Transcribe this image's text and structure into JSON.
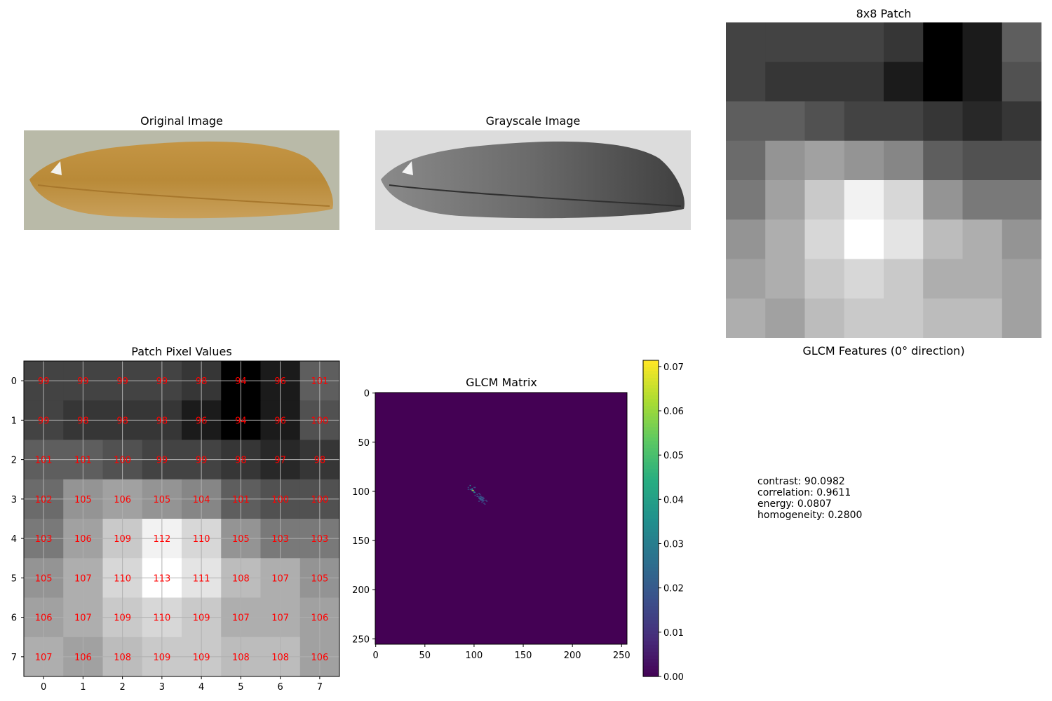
{
  "panels": {
    "original_title": "Original Image",
    "grayscale_title": "Grayscale Image",
    "patch_title": "8x8 Patch",
    "values_title": "Patch Pixel Values",
    "glcm_title": "GLCM Matrix",
    "features_title": "GLCM Features (0° direction)"
  },
  "features": [
    "contrast: 90.0982",
    "correlation: 0.9611",
    "energy: 0.0807",
    "homogeneity: 0.2800"
  ],
  "colors": {
    "grain": "#b88a3a",
    "background": "#b7b8a6",
    "value_text": "#ff0000"
  },
  "chart_data": [
    {
      "type": "heatmap",
      "title": "8x8 Patch",
      "colormap": "gray",
      "values": [
        [
          99,
          99,
          99,
          99,
          98,
          94,
          96,
          101
        ],
        [
          99,
          98,
          98,
          98,
          96,
          94,
          96,
          100
        ],
        [
          101,
          101,
          100,
          99,
          99,
          98,
          97,
          98
        ],
        [
          102,
          105,
          106,
          105,
          104,
          101,
          100,
          100
        ],
        [
          103,
          106,
          109,
          112,
          110,
          105,
          103,
          103
        ],
        [
          105,
          107,
          110,
          113,
          111,
          108,
          107,
          105
        ],
        [
          106,
          107,
          109,
          110,
          109,
          107,
          107,
          106
        ],
        [
          107,
          106,
          108,
          109,
          109,
          108,
          108,
          106
        ]
      ],
      "vmin": 94,
      "vmax": 113
    },
    {
      "type": "heatmap",
      "title": "Patch Pixel Values",
      "colormap": "gray",
      "annotated": true,
      "grid": true,
      "x_ticks": [
        "0",
        "1",
        "2",
        "3",
        "4",
        "5",
        "6",
        "7"
      ],
      "y_ticks": [
        "0",
        "1",
        "2",
        "3",
        "4",
        "5",
        "6",
        "7"
      ]
    },
    {
      "type": "heatmap",
      "title": "GLCM Matrix",
      "colormap": "viridis",
      "xlim": [
        0,
        255
      ],
      "ylim": [
        255,
        0
      ],
      "x_ticks": [
        "0",
        "50",
        "100",
        "150",
        "200",
        "250"
      ],
      "y_ticks": [
        "0",
        "50",
        "100",
        "150",
        "200",
        "250"
      ],
      "colorbar_ticks": [
        "0.00",
        "0.01",
        "0.02",
        "0.03",
        "0.04",
        "0.05",
        "0.06",
        "0.07"
      ],
      "colorbar_range": [
        0,
        0.0714
      ],
      "nonzero_region": "diagonal cluster around gray levels 94–113"
    }
  ]
}
